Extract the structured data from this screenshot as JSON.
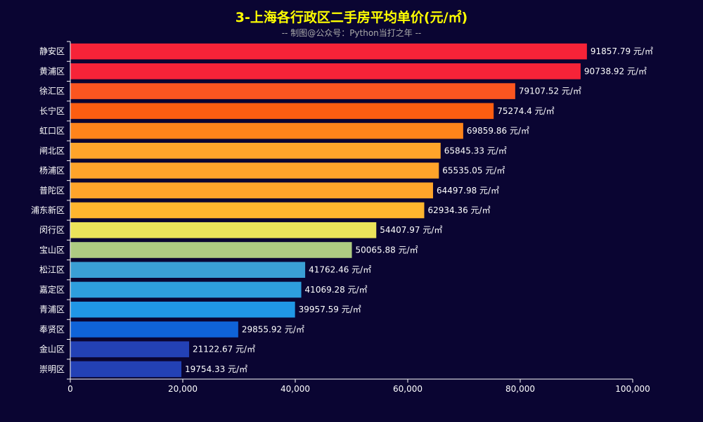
{
  "chart_data": {
    "type": "bar",
    "orientation": "horizontal",
    "title": "3-上海各行政区二手房平均单价(元/㎡)",
    "subtitle": "-- 制图@公众号：Python当打之年 --",
    "xlabel": "",
    "ylabel": "",
    "unit_suffix": " 元/㎡",
    "xlim": [
      0,
      100000
    ],
    "x_ticks": [
      "0",
      "20,000",
      "40,000",
      "60,000",
      "80,000",
      "100,000"
    ],
    "grid": false,
    "categories": [
      "静安区",
      "黄浦区",
      "徐汇区",
      "长宁区",
      "虹口区",
      "闸北区",
      "杨浦区",
      "普陀区",
      "浦东新区",
      "闵行区",
      "宝山区",
      "松江区",
      "嘉定区",
      "青浦区",
      "奉贤区",
      "金山区",
      "崇明区"
    ],
    "values": [
      91857.79,
      90738.92,
      79107.52,
      75274.4,
      69859.86,
      65845.33,
      65535.05,
      64497.98,
      62934.36,
      54407.97,
      50065.88,
      41762.46,
      41069.28,
      39957.59,
      29855.92,
      21122.67,
      19754.33
    ],
    "value_labels": [
      "91857.79 元/㎡",
      "90738.92 元/㎡",
      "79107.52 元/㎡",
      "75274.4 元/㎡",
      "69859.86 元/㎡",
      "65845.33 元/㎡",
      "65535.05 元/㎡",
      "64497.98 元/㎡",
      "62934.36 元/㎡",
      "54407.97 元/㎡",
      "50065.88 元/㎡",
      "41762.46 元/㎡",
      "41069.28 元/㎡",
      "39957.59 元/㎡",
      "29855.92 元/㎡",
      "21122.67 元/㎡",
      "19754.33 元/㎡"
    ],
    "colors": [
      "#f62338",
      "#f62338",
      "#fb5520",
      "#fd5d11",
      "#ff841a",
      "#ffa42a",
      "#ffa42a",
      "#ffa42a",
      "#ffb52e",
      "#ebe35a",
      "#aecb82",
      "#3a9fd5",
      "#2e9edd",
      "#2097e6",
      "#0f63d8",
      "#2341b5",
      "#2341b5"
    ],
    "axis_color": "#ffffff",
    "background": "#0a0532"
  }
}
